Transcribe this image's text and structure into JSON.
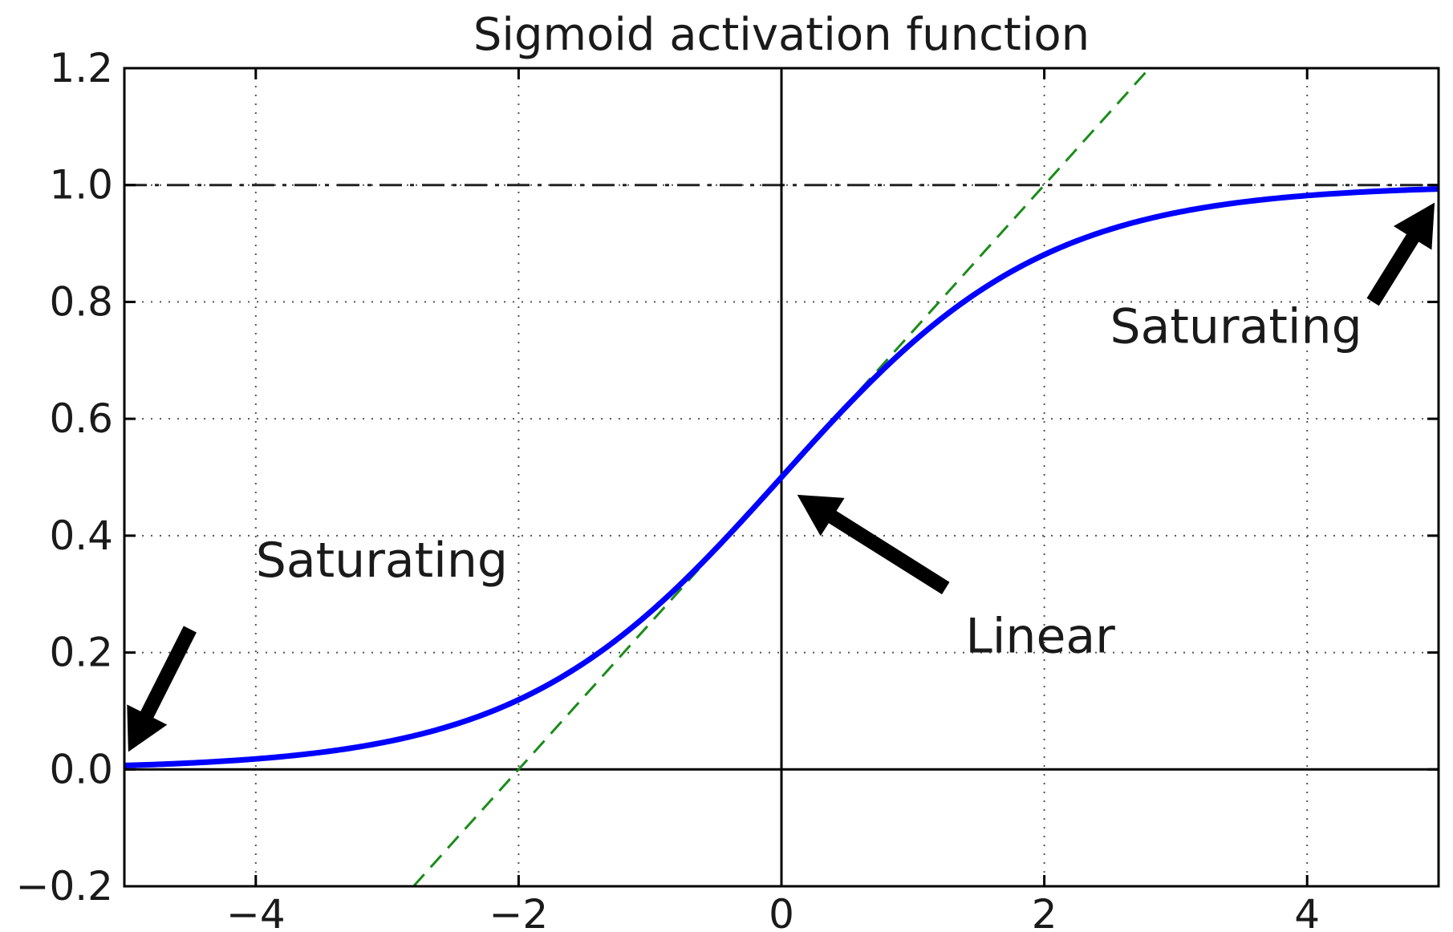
{
  "chart_data": {
    "type": "line",
    "title": "Sigmoid activation function",
    "xlabel": "",
    "ylabel": "",
    "xlim": [
      -5,
      5
    ],
    "ylim": [
      -0.2,
      1.2
    ],
    "grid": true,
    "x_ticks": [
      -4,
      -2,
      0,
      2,
      4
    ],
    "x_tick_labels": [
      "−4",
      "−2",
      "0",
      "2",
      "4"
    ],
    "y_ticks": [
      -0.2,
      0.0,
      0.2,
      0.4,
      0.6,
      0.8,
      1.0,
      1.2
    ],
    "y_tick_labels": [
      "−0.2",
      "0.0",
      "0.2",
      "0.4",
      "0.6",
      "0.8",
      "1.0",
      "1.2"
    ],
    "series": [
      {
        "function": "1 / (1 + exp(-x))",
        "style": "solid",
        "color": "#0000ff",
        "x": [
          -5,
          -4.5,
          -4,
          -3.5,
          -3,
          -2.5,
          -2,
          -1.5,
          -1,
          -0.5,
          0,
          0.5,
          1,
          1.5,
          2,
          2.5,
          3,
          3.5,
          4,
          4.5,
          5
        ],
        "y": [
          0.0067,
          0.011,
          0.018,
          0.0293,
          0.0474,
          0.0759,
          0.1192,
          0.1824,
          0.2689,
          0.3775,
          0.5,
          0.6225,
          0.7311,
          0.8176,
          0.8808,
          0.9241,
          0.9526,
          0.9707,
          0.982,
          0.989,
          0.9933
        ]
      },
      {
        "function": "x / 4 + 0.5",
        "style": "dashed",
        "color": "#1a8c1a",
        "x": [
          -2.8,
          2.8
        ],
        "y": [
          -0.2,
          1.2
        ]
      }
    ],
    "reference_lines": [
      {
        "orientation": "horizontal",
        "y": 1.0,
        "style": "dashdot",
        "color": "#222222"
      },
      {
        "orientation": "horizontal",
        "y": 0.0,
        "style": "solid",
        "color": "#000000"
      },
      {
        "orientation": "vertical",
        "x": 0,
        "style": "solid",
        "color": "#000000"
      }
    ],
    "annotations": [
      {
        "text": "Saturating",
        "text_x": -4.0,
        "text_y": 0.33,
        "point_x": -5.0,
        "point_y": 0.0
      },
      {
        "text": "Saturating",
        "text_x": 2.5,
        "text_y": 0.73,
        "point_x": 5.0,
        "point_y": 1.0
      },
      {
        "text": "Linear",
        "text_x": 1.4,
        "text_y": 0.2,
        "point_x": 0.0,
        "point_y": 0.5
      }
    ]
  }
}
